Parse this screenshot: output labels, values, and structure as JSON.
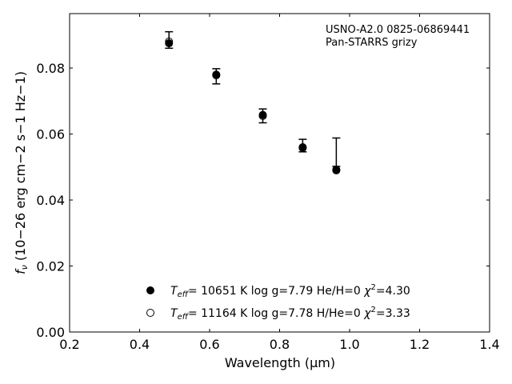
{
  "chart_data": {
    "type": "scatter",
    "title": "",
    "xlabel": "Wavelength",
    "xlabel_unit": "(μm)",
    "ylabel_prefix": "f",
    "ylabel_sub": "ν",
    "ylabel_units": "(10−26 erg cm−2 s−1 Hz−1)",
    "xlim": [
      0.2,
      1.4
    ],
    "ylim": [
      0.0,
      0.0965
    ],
    "xticks": [
      0.2,
      0.4,
      0.6,
      0.8,
      1.0,
      1.2,
      1.4
    ],
    "xtick_labels": [
      "0.2",
      "0.4",
      "0.6",
      "0.8",
      "1.0",
      "1.2",
      "1.4"
    ],
    "yticks": [
      0.0,
      0.02,
      0.04,
      0.06,
      0.08
    ],
    "ytick_labels": [
      "0.00",
      "0.02",
      "0.04",
      "0.06",
      "0.08"
    ],
    "grid": false,
    "annotations": [
      "USNO-A2.0 0825-06869441",
      "Pan-STARRS grizy"
    ],
    "observed": {
      "x": [
        0.484,
        0.619,
        0.752,
        0.866,
        0.962
      ],
      "y_center": [
        0.0885,
        0.0775,
        0.0655,
        0.0565,
        0.0545
      ],
      "y_err": [
        0.0025,
        0.0023,
        0.0021,
        0.0019,
        0.0043
      ]
    },
    "series": [
      {
        "name": "Teff= 10651 K  log g=7.79  He/H=0  χ2=4.30",
        "marker": "filled-circle",
        "x": [
          0.484,
          0.619,
          0.752,
          0.866,
          0.962
        ],
        "y": [
          0.0875,
          0.0778,
          0.0658,
          0.0558,
          0.049
        ]
      },
      {
        "name": "Teff= 11164 K  log g=7.78  H/He=0  χ2=3.33",
        "marker": "open-circle",
        "x": [
          0.484,
          0.619,
          0.752,
          0.866,
          0.962
        ],
        "y": [
          0.088,
          0.078,
          0.0655,
          0.056,
          0.0492
        ]
      }
    ],
    "legend": {
      "placement": "lower-center",
      "entries": [
        {
          "teff_symbol": "T",
          "teff_sub": "eff",
          "text": "= 10651 K  log g=7.79  He/H=0  ",
          "chi": "χ",
          "chi_sup": "2",
          "chi_val": "=4.30"
        },
        {
          "teff_symbol": "T",
          "teff_sub": "eff",
          "text": "= 11164 K  log g=7.78  H/He=0  ",
          "chi": "χ",
          "chi_sup": "2",
          "chi_val": "=3.33"
        }
      ]
    }
  }
}
